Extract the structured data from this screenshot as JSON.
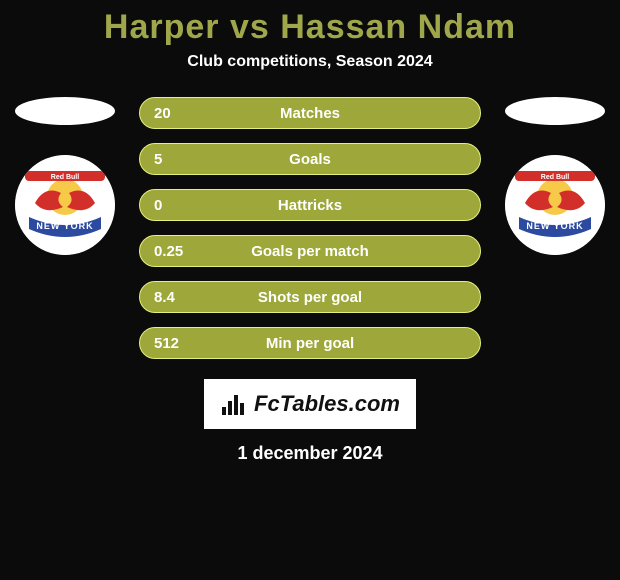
{
  "title": {
    "player1": "Harper",
    "vs": "vs",
    "player2": "Hassan Ndam",
    "color": "#a0a74a",
    "fontsize": 34
  },
  "subtitle": "Club competitions, Season 2024",
  "stats": {
    "bar_color": "#9da73a",
    "bar_border": "#e5f07f",
    "text_color": "#ffffff",
    "rows": [
      {
        "left": "20",
        "metric": "Matches",
        "right": ""
      },
      {
        "left": "5",
        "metric": "Goals",
        "right": ""
      },
      {
        "left": "0",
        "metric": "Hattricks",
        "right": ""
      },
      {
        "left": "0.25",
        "metric": "Goals per match",
        "right": ""
      },
      {
        "left": "8.4",
        "metric": "Shots per goal",
        "right": ""
      },
      {
        "left": "512",
        "metric": "Min per goal",
        "right": ""
      }
    ]
  },
  "logos": {
    "left_club": "Red Bull New York",
    "right_club": "Red Bull New York",
    "bull_body": "#d22f2a",
    "bull_sun": "#f7c948",
    "ny_band": "#2b4aa0",
    "site_name": "FcTables.com"
  },
  "date": "1 december 2024",
  "colors": {
    "background": "#0b0b0b",
    "title_accent": "#a0a74a",
    "white": "#ffffff"
  }
}
